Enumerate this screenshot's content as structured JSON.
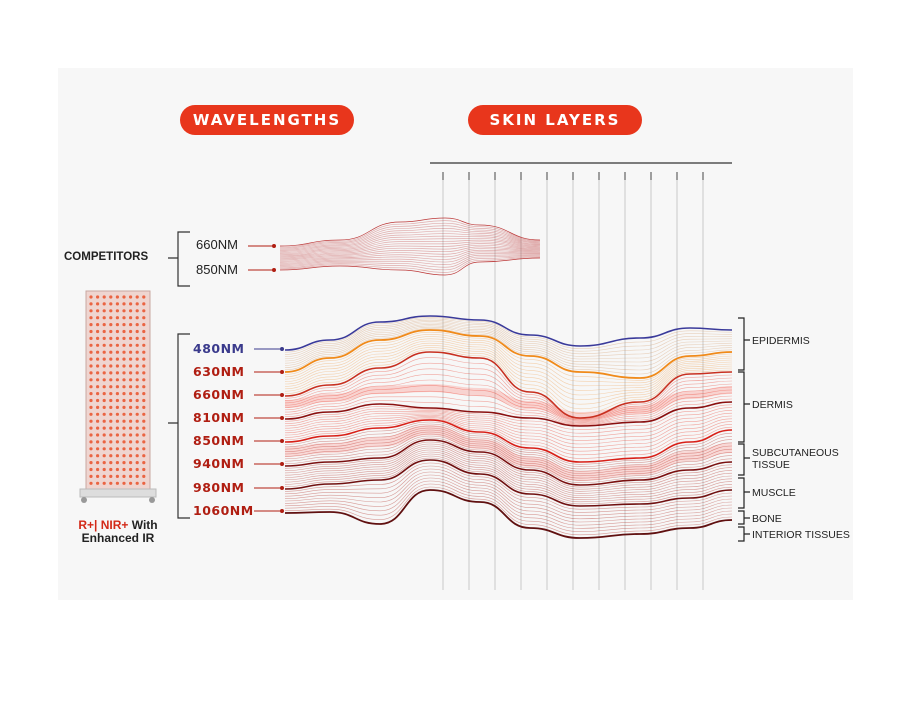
{
  "headers": {
    "wavelengths": "WAVELENGTHS",
    "skin_layers": "SKIN LAYERS"
  },
  "competitors": {
    "label": "COMPETITORS",
    "wavelengths": [
      "660NM",
      "850NM"
    ]
  },
  "product": {
    "wavelengths": [
      {
        "label": "480NM",
        "color": "#3a3a8c"
      },
      {
        "label": "630NM",
        "color": "#b01e12"
      },
      {
        "label": "660NM",
        "color": "#b01e12"
      },
      {
        "label": "810NM",
        "color": "#b01e12"
      },
      {
        "label": "850NM",
        "color": "#b01e12"
      },
      {
        "label": "940NM",
        "color": "#b01e12"
      },
      {
        "label": "980NM",
        "color": "#b01e12"
      },
      {
        "label": "1060NM",
        "color": "#b01e12"
      }
    ],
    "caption_line1_red": "R+| NIR+",
    "caption_line1_rest": " With",
    "caption_line2": "Enhanced IR"
  },
  "skin_layers": [
    {
      "line1": "EPIDERMIS",
      "line2": ""
    },
    {
      "line1": "DERMIS",
      "line2": ""
    },
    {
      "line1": "SUBCUTANEOUS",
      "line2": "TISSUE"
    },
    {
      "line1": "MUSCLE",
      "line2": ""
    },
    {
      "line1": "BONE",
      "line2": ""
    },
    {
      "line1": "INTERIOR TISSUES",
      "line2": ""
    }
  ],
  "colors": {
    "accent": "#e8361c",
    "deep_red": "#8a1010",
    "blue": "#3a3a9a",
    "orange": "#f08a1a"
  }
}
